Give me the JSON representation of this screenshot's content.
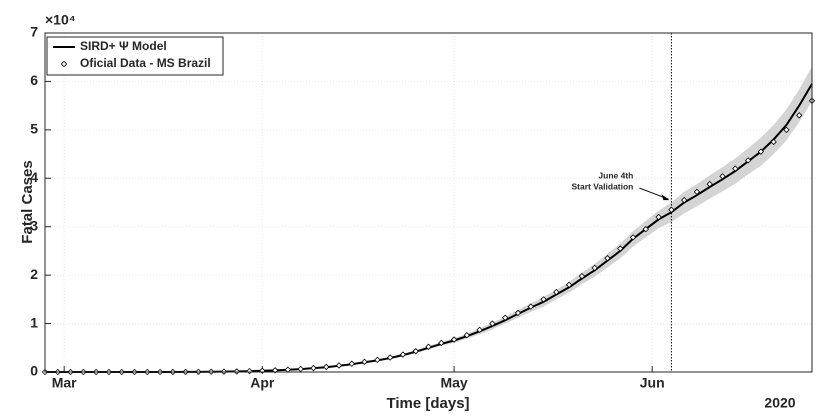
{
  "chart_data": {
    "type": "line",
    "xlabel": "Time [days]",
    "ylabel": "Fatal Cases",
    "y_multiplier": "×10⁴",
    "x_year": "2020",
    "x": [
      0,
      2,
      4,
      6,
      8,
      10,
      12,
      14,
      16,
      18,
      20,
      22,
      24,
      26,
      28,
      30,
      32,
      34,
      36,
      38,
      40,
      42,
      44,
      46,
      48,
      50,
      52,
      54,
      56,
      58,
      60,
      62,
      64,
      66,
      68,
      70,
      72,
      74,
      76,
      78,
      80,
      82,
      84,
      86,
      88,
      90,
      92,
      94,
      96,
      98,
      100,
      102,
      104,
      106,
      108,
      110,
      112,
      114,
      116,
      118,
      120
    ],
    "xlim": [
      0,
      120
    ],
    "xticks": [
      {
        "value": 3,
        "label": "Mar"
      },
      {
        "value": 34,
        "label": "Apr"
      },
      {
        "value": 64,
        "label": "May"
      },
      {
        "value": 95,
        "label": "Jun"
      }
    ],
    "ylim": [
      0,
      7
    ],
    "yticks": [
      0,
      1,
      2,
      3,
      4,
      5,
      6,
      7
    ],
    "grid": true,
    "legend": "upper-left",
    "series": [
      {
        "name": "SIRD+ Ψ Model",
        "color": "#000000",
        "style": "line",
        "values": [
          0,
          0,
          0,
          0,
          0,
          0,
          0,
          0,
          0,
          0,
          0.001,
          0.002,
          0.003,
          0.005,
          0.008,
          0.012,
          0.017,
          0.024,
          0.033,
          0.045,
          0.06,
          0.08,
          0.1,
          0.13,
          0.16,
          0.2,
          0.24,
          0.29,
          0.35,
          0.42,
          0.5,
          0.58,
          0.65,
          0.74,
          0.84,
          0.95,
          1.07,
          1.2,
          1.33,
          1.45,
          1.6,
          1.75,
          1.93,
          2.1,
          2.3,
          2.5,
          2.75,
          2.95,
          3.15,
          3.3,
          3.5,
          3.65,
          3.82,
          3.98,
          4.15,
          4.35,
          4.55,
          4.8,
          5.1,
          5.5,
          5.95
        ]
      },
      {
        "name": "Oficial Data - MS Brazil",
        "color": "#000000",
        "style": "diamond",
        "values": [
          0,
          0,
          0,
          0,
          0,
          0,
          0,
          0,
          0,
          0,
          0.001,
          0.002,
          0.003,
          0.005,
          0.008,
          0.012,
          0.018,
          0.025,
          0.035,
          0.047,
          0.062,
          0.082,
          0.105,
          0.135,
          0.17,
          0.21,
          0.25,
          0.3,
          0.36,
          0.43,
          0.52,
          0.6,
          0.67,
          0.76,
          0.87,
          1.0,
          1.12,
          1.22,
          1.35,
          1.5,
          1.65,
          1.8,
          1.98,
          2.15,
          2.35,
          2.55,
          2.78,
          2.95,
          3.2,
          3.35,
          3.55,
          3.72,
          3.88,
          4.04,
          4.2,
          4.37,
          4.55,
          4.75,
          5.0,
          5.3,
          5.6
        ]
      }
    ],
    "band": {
      "color": "#d4d4d4",
      "lower": [
        0,
        0,
        0,
        0,
        0,
        0,
        0,
        0,
        0,
        0,
        0.001,
        0.002,
        0.003,
        0.005,
        0.007,
        0.011,
        0.016,
        0.022,
        0.031,
        0.042,
        0.056,
        0.074,
        0.093,
        0.121,
        0.149,
        0.186,
        0.223,
        0.27,
        0.325,
        0.39,
        0.465,
        0.54,
        0.6,
        0.69,
        0.78,
        0.88,
        1.0,
        1.12,
        1.24,
        1.35,
        1.5,
        1.64,
        1.81,
        1.97,
        2.16,
        2.35,
        2.59,
        2.78,
        2.97,
        3.1,
        3.28,
        3.42,
        3.58,
        3.73,
        3.89,
        4.08,
        4.26,
        4.5,
        4.78,
        5.16,
        5.59
      ],
      "upper": [
        0,
        0,
        0,
        0,
        0,
        0,
        0,
        0,
        0,
        0,
        0.001,
        0.002,
        0.003,
        0.005,
        0.009,
        0.013,
        0.018,
        0.026,
        0.035,
        0.048,
        0.064,
        0.086,
        0.107,
        0.139,
        0.171,
        0.214,
        0.257,
        0.31,
        0.375,
        0.45,
        0.535,
        0.62,
        0.7,
        0.79,
        0.9,
        1.02,
        1.14,
        1.28,
        1.42,
        1.55,
        1.7,
        1.86,
        2.05,
        2.23,
        2.44,
        2.65,
        2.91,
        3.12,
        3.33,
        3.5,
        3.72,
        3.88,
        4.06,
        4.23,
        4.41,
        4.62,
        4.84,
        5.1,
        5.42,
        5.84,
        6.31
      ]
    },
    "vline_x": 98,
    "annotation": {
      "lines": [
        "June 4th",
        "Start Validation"
      ],
      "target_y": 3.55
    }
  }
}
